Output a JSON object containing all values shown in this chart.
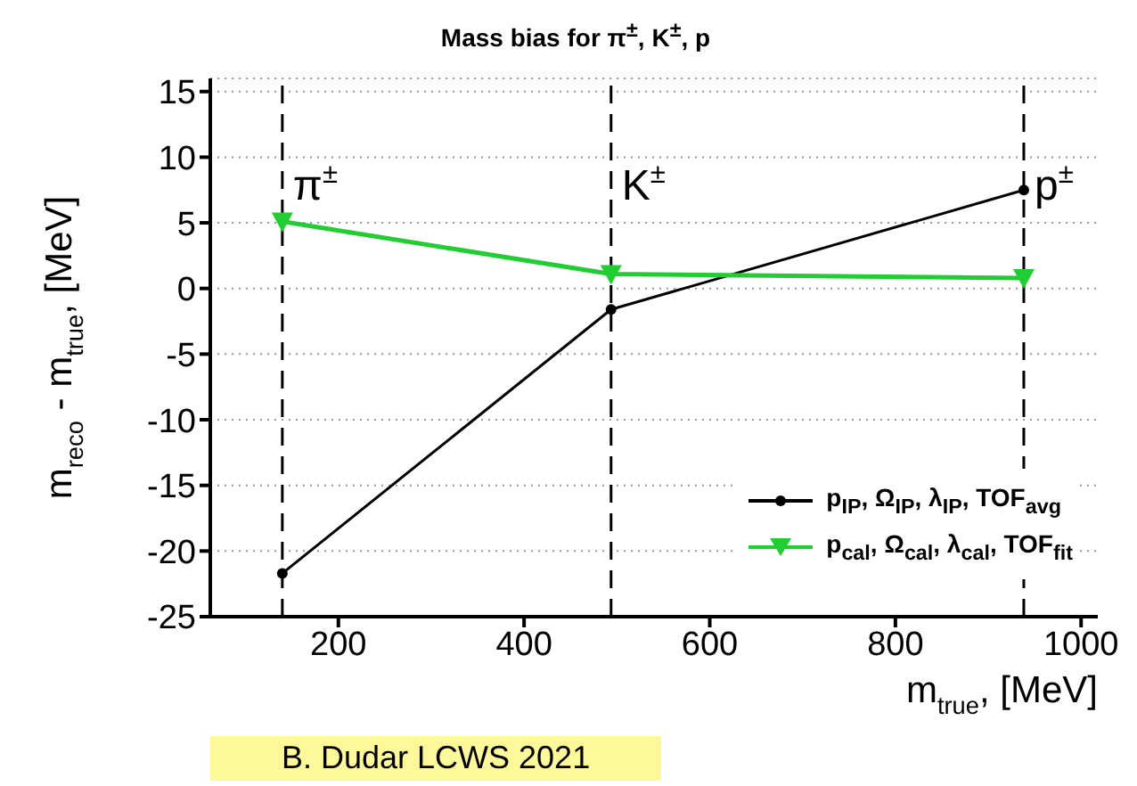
{
  "chart_data": {
    "type": "line",
    "title": "Mass bias for π$^{±}$, K$^{±}$, p",
    "xlabel": "m$_{true}$, [MeV]",
    "ylabel": "m$_{reco}$ - m$_{true}$, [MeV]",
    "xlim": [
      62,
      1018
    ],
    "xticks": [
      200,
      400,
      600,
      800,
      1000
    ],
    "ylim": [
      -25,
      16
    ],
    "yticks": [
      -25,
      -20,
      -15,
      -10,
      -5,
      0,
      5,
      10,
      15
    ],
    "grid": "y",
    "legend": "bottom right",
    "series": [
      {
        "name": "p$_{IP}$, Ω$_{IP}$, λ$_{IP}$, TOF$_{avg}$",
        "color": "#000000",
        "marker": "circle",
        "x": [
          139.6,
          493.7,
          938.3
        ],
        "values": [
          -21.7,
          -1.6,
          7.5
        ]
      },
      {
        "name": "p$_{cal}$, Ω$_{cal}$, λ$_{cal}$, TOF$_{fit}$",
        "color": "#22cc33",
        "marker": "triangle",
        "x": [
          139.6,
          493.7,
          938.3
        ],
        "values": [
          5.1,
          1.1,
          0.8
        ]
      }
    ],
    "ref_lines": [
      {
        "axis": "x",
        "value": 139.6,
        "label": "π$^{±}$",
        "color": "#000000",
        "line_style": "dashed"
      },
      {
        "axis": "x",
        "value": 493.7,
        "label": "K$^{±}$",
        "color": "#000000",
        "line_style": "dashed"
      },
      {
        "axis": "x",
        "value": 938.3,
        "label": "p$^{±}$",
        "color": "#000000",
        "line_style": "dashed"
      }
    ],
    "annotations": [
      "B. Dudar LCWS 2021"
    ]
  }
}
